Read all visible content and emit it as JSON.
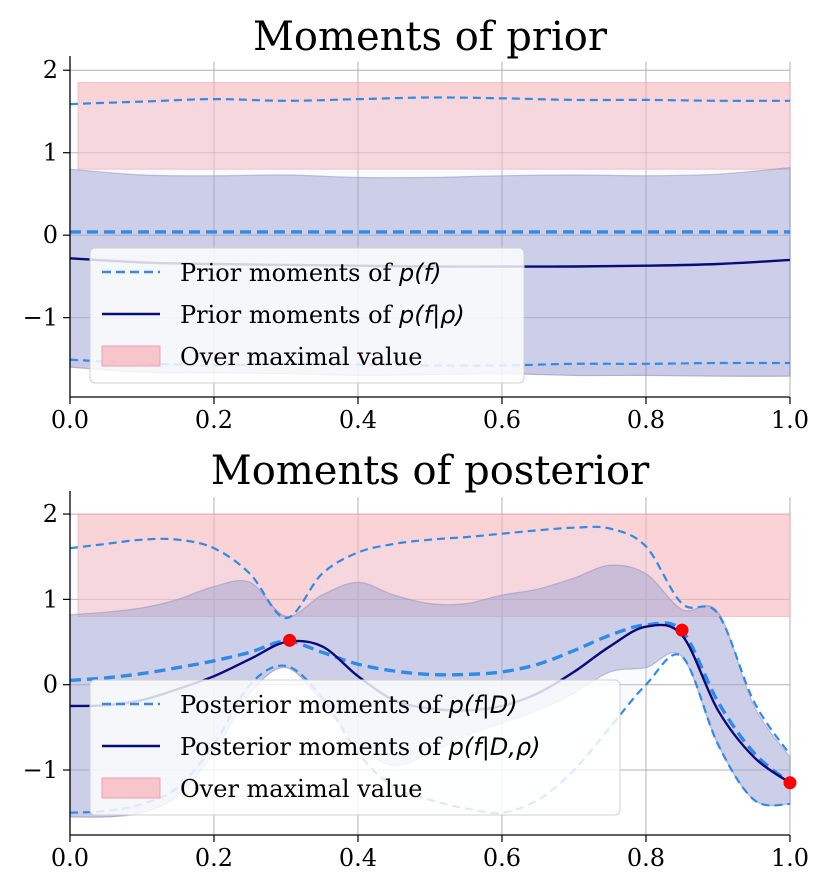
{
  "chart_data": [
    {
      "type": "line",
      "title": "Moments of prior",
      "xlim": [
        0.0,
        1.0
      ],
      "ylim": [
        -1.95,
        2.1
      ],
      "xticks": [
        "0.0",
        "0.2",
        "0.4",
        "0.6",
        "0.8",
        "1.0"
      ],
      "yticks": [
        "−1",
        "0",
        "1",
        "2"
      ],
      "ytick_values": [
        -1,
        0,
        1,
        2
      ],
      "grid": true,
      "legend_placement": "lower-left",
      "over_max_band": {
        "label": "Over maximal value",
        "y_low": 0.8,
        "y_high": 1.85,
        "color": "#f7b6bd"
      },
      "x": [
        0.0,
        0.1,
        0.2,
        0.3,
        0.4,
        0.5,
        0.6,
        0.7,
        0.8,
        0.9,
        1.0
      ],
      "series": [
        {
          "name": "Prior moments of p(f)",
          "style": "dashed",
          "color": "#2e8be8",
          "mean": [
            0.04,
            0.04,
            0.04,
            0.04,
            0.04,
            0.04,
            0.04,
            0.04,
            0.04,
            0.04,
            0.04
          ],
          "upper": [
            1.59,
            1.62,
            1.65,
            1.63,
            1.65,
            1.67,
            1.66,
            1.64,
            1.64,
            1.63,
            1.63
          ],
          "lower": [
            -1.51,
            -1.55,
            -1.58,
            -1.56,
            -1.57,
            -1.58,
            -1.58,
            -1.56,
            -1.56,
            -1.55,
            -1.55
          ]
        },
        {
          "name": "Prior moments of p(f|ρ)",
          "style": "solid",
          "color": "#0a0a7a",
          "mean": [
            -0.28,
            -0.33,
            -0.35,
            -0.36,
            -0.37,
            -0.38,
            -0.38,
            -0.38,
            -0.37,
            -0.35,
            -0.3
          ],
          "upper": [
            0.8,
            0.73,
            0.72,
            0.73,
            0.7,
            0.7,
            0.72,
            0.73,
            0.72,
            0.74,
            0.82
          ],
          "lower": [
            -1.6,
            -1.66,
            -1.67,
            -1.68,
            -1.7,
            -1.69,
            -1.68,
            -1.7,
            -1.7,
            -1.71,
            -1.71
          ]
        }
      ],
      "legend": [
        {
          "label_pre": "Prior moments of ",
          "label_math": "p(f)"
        },
        {
          "label_pre": "Prior moments of ",
          "label_math": "p(f|ρ)"
        },
        {
          "label_pre": "Over maximal value",
          "label_math": ""
        }
      ]
    },
    {
      "type": "line",
      "title": "Moments of posterior",
      "xlim": [
        0.0,
        1.0
      ],
      "ylim": [
        -1.75,
        2.2
      ],
      "xticks": [
        "0.0",
        "0.2",
        "0.4",
        "0.6",
        "0.8",
        "1.0"
      ],
      "yticks": [
        "−1",
        "0",
        "1",
        "2"
      ],
      "ytick_values": [
        -1,
        0,
        1,
        2
      ],
      "grid": true,
      "legend_placement": "lower-left",
      "over_max_band": {
        "label": "Over maximal value",
        "y_low": 0.8,
        "y_high": 2.0,
        "color": "#f7b6bd"
      },
      "x": [
        0.0,
        0.05,
        0.1,
        0.15,
        0.2,
        0.25,
        0.3,
        0.35,
        0.4,
        0.45,
        0.5,
        0.55,
        0.6,
        0.65,
        0.7,
        0.75,
        0.8,
        0.85,
        0.9,
        0.95,
        1.0
      ],
      "observations": {
        "x": [
          0.305,
          0.85,
          1.0
        ],
        "y": [
          0.52,
          0.64,
          -1.15
        ],
        "color": "#ff0000"
      },
      "series": [
        {
          "name": "Posterior moments of p(f|D)",
          "style": "dashed",
          "color": "#2e8be8",
          "mean": [
            0.05,
            0.08,
            0.13,
            0.2,
            0.28,
            0.38,
            0.51,
            0.38,
            0.24,
            0.16,
            0.12,
            0.12,
            0.15,
            0.24,
            0.4,
            0.58,
            0.7,
            0.63,
            -0.2,
            -0.8,
            -1.15
          ],
          "upper": [
            1.6,
            1.65,
            1.7,
            1.7,
            1.6,
            1.3,
            0.78,
            1.3,
            1.55,
            1.65,
            1.7,
            1.73,
            1.77,
            1.81,
            1.84,
            1.83,
            1.62,
            0.95,
            0.83,
            -0.2,
            -0.82
          ],
          "lower": [
            -1.5,
            -1.48,
            -1.4,
            -1.2,
            -0.7,
            0.0,
            0.22,
            -0.15,
            -0.8,
            -1.2,
            -1.35,
            -1.45,
            -1.5,
            -1.35,
            -1.0,
            -0.5,
            0.0,
            0.33,
            -0.7,
            -1.35,
            -1.4
          ]
        },
        {
          "name": "Posterior moments of p(f|D,ρ)",
          "style": "solid",
          "color": "#0a0a7a",
          "mean": [
            -0.25,
            -0.24,
            -0.18,
            -0.05,
            0.1,
            0.3,
            0.5,
            0.45,
            0.1,
            -0.18,
            -0.28,
            -0.3,
            -0.25,
            -0.1,
            0.15,
            0.45,
            0.68,
            0.58,
            -0.3,
            -0.85,
            -1.15
          ],
          "upper": [
            0.82,
            0.85,
            0.9,
            1.0,
            1.15,
            1.2,
            0.8,
            1.05,
            1.2,
            1.05,
            0.95,
            0.95,
            1.05,
            1.12,
            1.25,
            1.4,
            1.3,
            0.88,
            0.85,
            -0.25,
            -0.85
          ],
          "lower": [
            -1.55,
            -1.55,
            -1.5,
            -1.3,
            -0.8,
            -0.1,
            0.2,
            -0.2,
            -0.7,
            -0.95,
            -0.8,
            -0.6,
            -0.45,
            -0.3,
            -0.1,
            0.15,
            0.2,
            0.33,
            -0.7,
            -1.35,
            -1.4
          ]
        }
      ],
      "legend": [
        {
          "label_pre": "Posterior moments of ",
          "label_math": "p(f|D)"
        },
        {
          "label_pre": "Posterior moments of ",
          "label_math": "p(f|D,ρ)"
        },
        {
          "label_pre": "Over maximal value",
          "label_math": ""
        }
      ]
    }
  ],
  "colors": {
    "dashed_line": "#2e8be8",
    "solid_line": "#0a0a7a",
    "band_fill": "#8a8ac8",
    "over_max_fill": "#f7b6bd",
    "observation": "#ff0000"
  }
}
